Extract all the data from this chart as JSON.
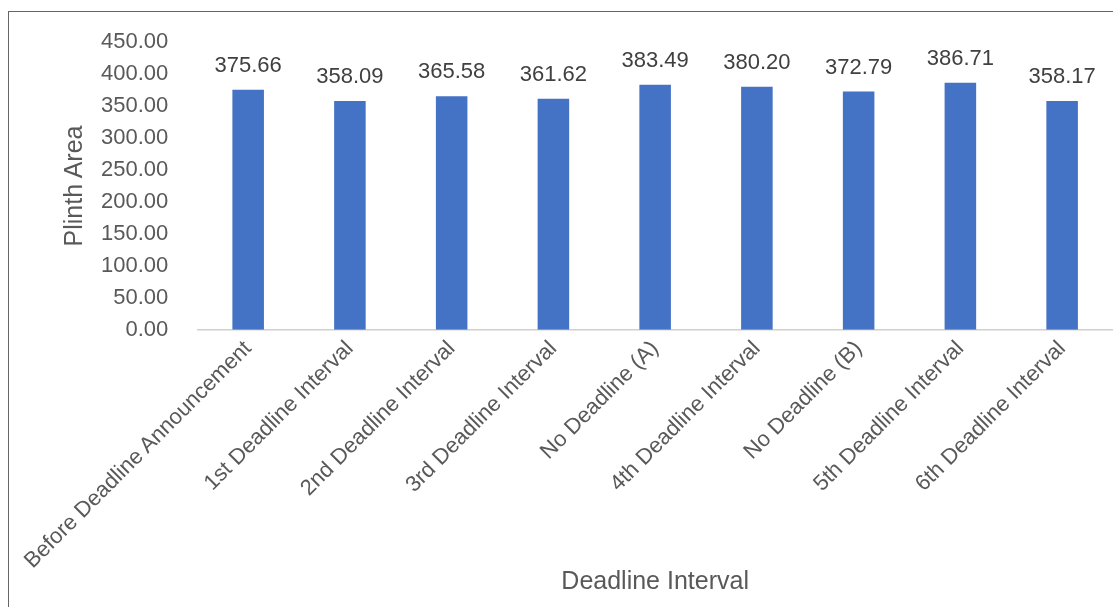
{
  "chart_data": {
    "type": "bar",
    "xlabel": "Deadline Interval",
    "ylabel": "Plinth Area",
    "categories": [
      "Before Deadline Announcement",
      "1st Deadline Interval",
      "2nd Deadline Interval",
      "3rd Deadline Interval",
      "No Deadline (A)",
      "4th Deadline Interval",
      "No Deadline (B)",
      "5th Deadline Interval",
      "6th Deadline Interval"
    ],
    "values": [
      375.66,
      358.09,
      365.58,
      361.62,
      383.49,
      380.2,
      372.79,
      386.71,
      358.17
    ],
    "value_labels": [
      "375.66",
      "358.09",
      "365.58",
      "361.62",
      "383.49",
      "380.20",
      "372.79",
      "386.71",
      "358.17"
    ],
    "color": "#4472c4",
    "ylim": [
      0,
      450
    ],
    "yticks": [
      {
        "value": 0,
        "label": "0.00"
      },
      {
        "value": 50,
        "label": "50.00"
      },
      {
        "value": 100,
        "label": "100.00"
      },
      {
        "value": 150,
        "label": "150.00"
      },
      {
        "value": 200,
        "label": "200.00"
      },
      {
        "value": 250,
        "label": "250.00"
      },
      {
        "value": 300,
        "label": "300.00"
      },
      {
        "value": 350,
        "label": "350.00"
      },
      {
        "value": 400,
        "label": "400.00"
      },
      {
        "value": 450,
        "label": "450.00"
      }
    ],
    "grid": false
  }
}
